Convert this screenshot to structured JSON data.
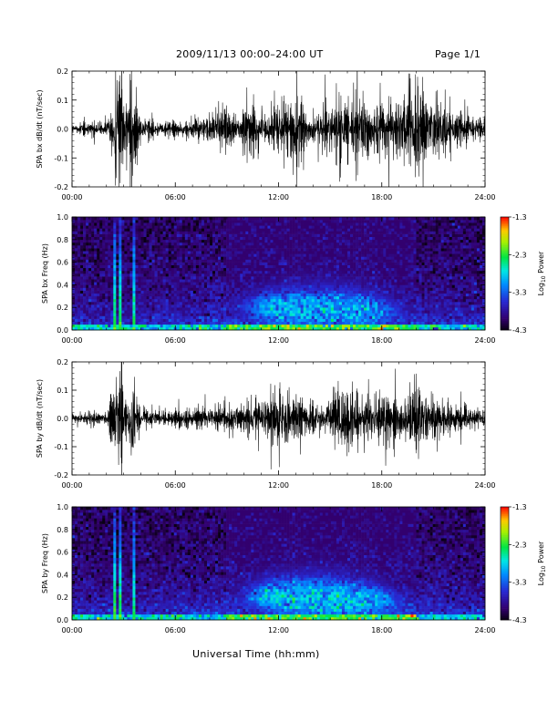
{
  "header": {
    "title": "2009/11/13  00:00–24:00 UT",
    "page": "Page 1/1"
  },
  "xaxis_title": "Universal Time (hh:mm)",
  "colorbar": {
    "label_prefix": "Log",
    "label_sub": "10",
    "label_suffix": " Power",
    "ticks": [
      "-1.3",
      "-2.3",
      "-3.3",
      "-4.3"
    ]
  },
  "chart_data": [
    {
      "type": "line",
      "ylabel": "SPA bx dB/dt (nT/sec)",
      "x_unit": "hours UT",
      "xlim": [
        0,
        24
      ],
      "ylim": [
        -0.2,
        0.2
      ],
      "xticks": [
        "00:00",
        "06:00",
        "12:00",
        "18:00",
        "24:00"
      ],
      "yticks": [
        "0.2",
        "0.1",
        "0.0",
        "-0.1",
        "-0.2"
      ],
      "amplitude_envelope": {
        "x": [
          0,
          1,
          2,
          2.4,
          2.6,
          2.8,
          3.0,
          3.3,
          3.5,
          3.7,
          4.0,
          5,
          6,
          7,
          8,
          9,
          9.5,
          10,
          10.5,
          11,
          11.5,
          12,
          12.5,
          13,
          13.5,
          14,
          14.5,
          15,
          15.5,
          16,
          16.5,
          17,
          17.5,
          18,
          18.5,
          19,
          19.5,
          20,
          20.5,
          21,
          21.5,
          22,
          23,
          24
        ],
        "values": [
          0.015,
          0.02,
          0.025,
          0.09,
          0.2,
          0.2,
          0.12,
          0.06,
          0.2,
          0.07,
          0.04,
          0.02,
          0.025,
          0.03,
          0.04,
          0.06,
          0.05,
          0.08,
          0.07,
          0.06,
          0.06,
          0.07,
          0.1,
          0.1,
          0.07,
          0.05,
          0.07,
          0.08,
          0.1,
          0.11,
          0.11,
          0.09,
          0.09,
          0.1,
          0.1,
          0.1,
          0.11,
          0.13,
          0.09,
          0.09,
          0.1,
          0.06,
          0.04,
          0.03
        ]
      },
      "line_color": "#000000"
    },
    {
      "type": "heatmap",
      "ylabel": "SPA bx Freq (Hz)",
      "xlim": [
        0,
        24
      ],
      "ylim": [
        0,
        1
      ],
      "xticks": [
        "00:00",
        "06:00",
        "12:00",
        "18:00",
        "24:00"
      ],
      "yticks": [
        "1.0",
        "0.8",
        "0.6",
        "0.4",
        "0.2",
        "0.0"
      ],
      "value_range": [
        -4.3,
        -1.3
      ],
      "features": [
        {
          "kind": "broadband_spike",
          "t": 2.5,
          "level": -2.0
        },
        {
          "kind": "broadband_spike",
          "t": 2.8,
          "level": -2.2
        },
        {
          "kind": "broadband_spike",
          "t": 3.6,
          "level": -2.3
        },
        {
          "kind": "pc1_band",
          "t_start": 9,
          "t_end": 20,
          "f_center_start": 0.2,
          "f_center_end": 0.15,
          "level": -3.0
        },
        {
          "kind": "low_freq_floor",
          "f_max": 0.04,
          "level": -2.8
        }
      ]
    },
    {
      "type": "line",
      "ylabel": "SPA by dB/dt (nT/sec)",
      "x_unit": "hours UT",
      "xlim": [
        0,
        24
      ],
      "ylim": [
        -0.2,
        0.2
      ],
      "xticks": [
        "00:00",
        "06:00",
        "12:00",
        "18:00",
        "24:00"
      ],
      "yticks": [
        "0.2",
        "0.1",
        "0.0",
        "-0.1",
        "-0.2"
      ],
      "amplitude_envelope": {
        "x": [
          0,
          1,
          2,
          2.4,
          2.6,
          2.8,
          3.0,
          3.3,
          3.5,
          3.7,
          4.0,
          5,
          6,
          7,
          8,
          9,
          9.5,
          10,
          10.5,
          11,
          11.5,
          12,
          12.5,
          13,
          13.5,
          14,
          14.5,
          15,
          15.5,
          16,
          16.5,
          17,
          17.5,
          18,
          18.5,
          19,
          19.5,
          20,
          20.5,
          21,
          21.5,
          22,
          23,
          24
        ],
        "values": [
          0.015,
          0.02,
          0.025,
          0.08,
          0.18,
          0.2,
          0.1,
          0.06,
          0.2,
          0.06,
          0.04,
          0.02,
          0.025,
          0.03,
          0.035,
          0.04,
          0.05,
          0.05,
          0.05,
          0.06,
          0.08,
          0.1,
          0.14,
          0.08,
          0.06,
          0.05,
          0.05,
          0.07,
          0.09,
          0.09,
          0.08,
          0.07,
          0.08,
          0.08,
          0.09,
          0.07,
          0.08,
          0.1,
          0.07,
          0.07,
          0.06,
          0.05,
          0.04,
          0.03
        ]
      },
      "line_color": "#000000"
    },
    {
      "type": "heatmap",
      "ylabel": "SPA by Freq (Hz)",
      "xlim": [
        0,
        24
      ],
      "ylim": [
        0,
        1
      ],
      "xticks": [
        "00:00",
        "06:00",
        "12:00",
        "18:00",
        "24:00"
      ],
      "yticks": [
        "1.0",
        "0.8",
        "0.6",
        "0.4",
        "0.2",
        "0.0"
      ],
      "value_range": [
        -4.3,
        -1.3
      ],
      "features": [
        {
          "kind": "broadband_spike",
          "t": 2.5,
          "level": -2.0
        },
        {
          "kind": "broadband_spike",
          "t": 2.8,
          "level": -2.2
        },
        {
          "kind": "broadband_spike",
          "t": 3.6,
          "level": -2.3
        },
        {
          "kind": "pc1_band",
          "t_start": 9,
          "t_end": 20,
          "f_center_start": 0.22,
          "f_center_end": 0.15,
          "level": -2.9
        },
        {
          "kind": "low_freq_floor",
          "f_max": 0.04,
          "level": -2.8
        }
      ]
    }
  ]
}
